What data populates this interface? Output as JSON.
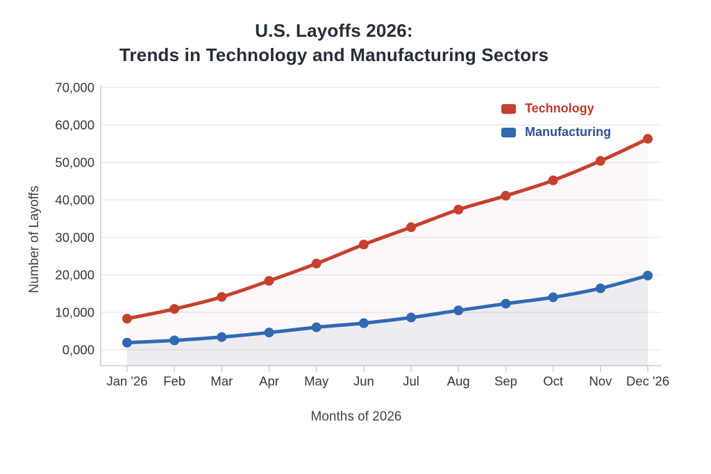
{
  "title": {
    "line1": "U.S. Layoffs 2026:",
    "line2": "Trends in Technology and Manufacturing Sectors"
  },
  "axes": {
    "y_label": "Number of Layoffs",
    "x_label": "Months of 2026"
  },
  "legend": {
    "items": [
      {
        "label": "Technology",
        "swatch_color": "#c5402e",
        "text_color": "#c13a29"
      },
      {
        "label": "Manufacturing",
        "swatch_color": "#3069b2",
        "text_color": "#2d5193"
      }
    ]
  },
  "chart_data": {
    "type": "line",
    "title": "U.S. Layoffs 2026: Trends in Technology and Manufacturing Sectors",
    "xlabel": "Months of 2026",
    "ylabel": "Number of Layoffs",
    "ylim": [
      0,
      70000
    ],
    "y_tick_step": 10000,
    "y_tick_labels": [
      "0,000",
      "10,000",
      "20,000",
      "30,000",
      "40,000",
      "50,000",
      "60,000",
      "70,000"
    ],
    "grid": true,
    "legend_position": "top-right",
    "categories": [
      "Jan '26",
      "Feb",
      "Mar",
      "Apr",
      "May",
      "Jun",
      "Jul",
      "Aug",
      "Sep",
      "Oct",
      "Nov",
      "Dec '26"
    ],
    "series": [
      {
        "name": "Technology",
        "color": "#c5402e",
        "fill_opacity": 0.04,
        "values": [
          8300,
          10900,
          14100,
          18400,
          23000,
          28100,
          32700,
          37400,
          41100,
          45200,
          50400,
          56300
        ]
      },
      {
        "name": "Manufacturing",
        "color": "#3069b2",
        "fill_opacity": 0.08,
        "values": [
          1900,
          2500,
          3400,
          4600,
          6000,
          7100,
          8600,
          10500,
          12300,
          14000,
          16400,
          19800
        ]
      }
    ]
  },
  "style": {
    "grid_color": "#e5e7ea",
    "axis_color": "#c9ced5",
    "tick_label_color": "#30353e"
  }
}
